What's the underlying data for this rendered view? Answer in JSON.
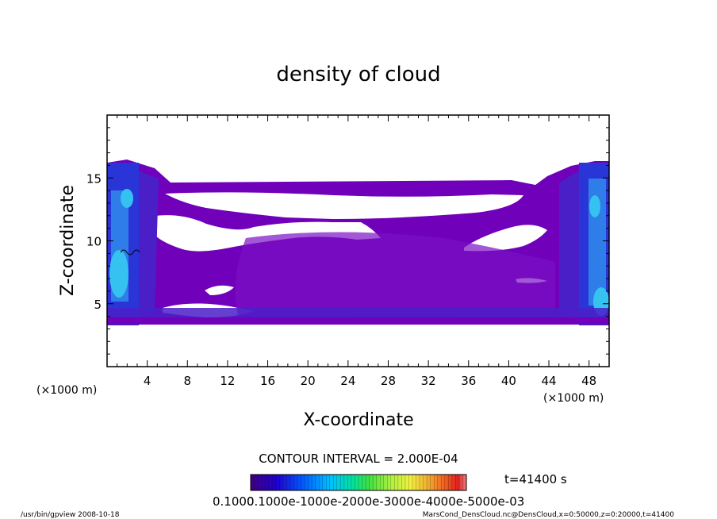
{
  "chart_data": {
    "type": "heatmap",
    "title": "density of cloud",
    "xlabel": "X-coordinate",
    "ylabel": "Z-coordinate",
    "x_unit": "(×1000 m)",
    "y_unit": "(×1000 m)",
    "xlim": [
      0,
      50
    ],
    "ylim": [
      0,
      20
    ],
    "xticks": [
      "4",
      "8",
      "12",
      "16",
      "20",
      "24",
      "28",
      "32",
      "36",
      "40",
      "44",
      "48"
    ],
    "yticks": [
      "5",
      "10",
      "15"
    ],
    "contour_interval": "CONTOUR INTERVAL = 2.000E-04",
    "time_label": "t=41400 s",
    "colorbar_labels": [
      "0.1000",
      "0.1000e-1000e-2000e-3000e-4000e-5000e-03"
    ],
    "footer_left": "/usr/bin/gpview   2008-10-18",
    "footer_right": "MarsCond_DensCloud.nc@DensCloud,x=0:50000,z=0:20000,t=41400",
    "colors": {
      "background_field": "#7000ba",
      "cloud_light": "#8020c8",
      "deep_blue": "#2030e0",
      "cyan": "#30c0f0",
      "colorbar": [
        "#400080",
        "#2000d0",
        "#0060ff",
        "#00c0ff",
        "#00e0a0",
        "#40e040",
        "#b0f040",
        "#f0f040",
        "#f0b030",
        "#f06020",
        "#e02020",
        "#f08080"
      ]
    }
  }
}
